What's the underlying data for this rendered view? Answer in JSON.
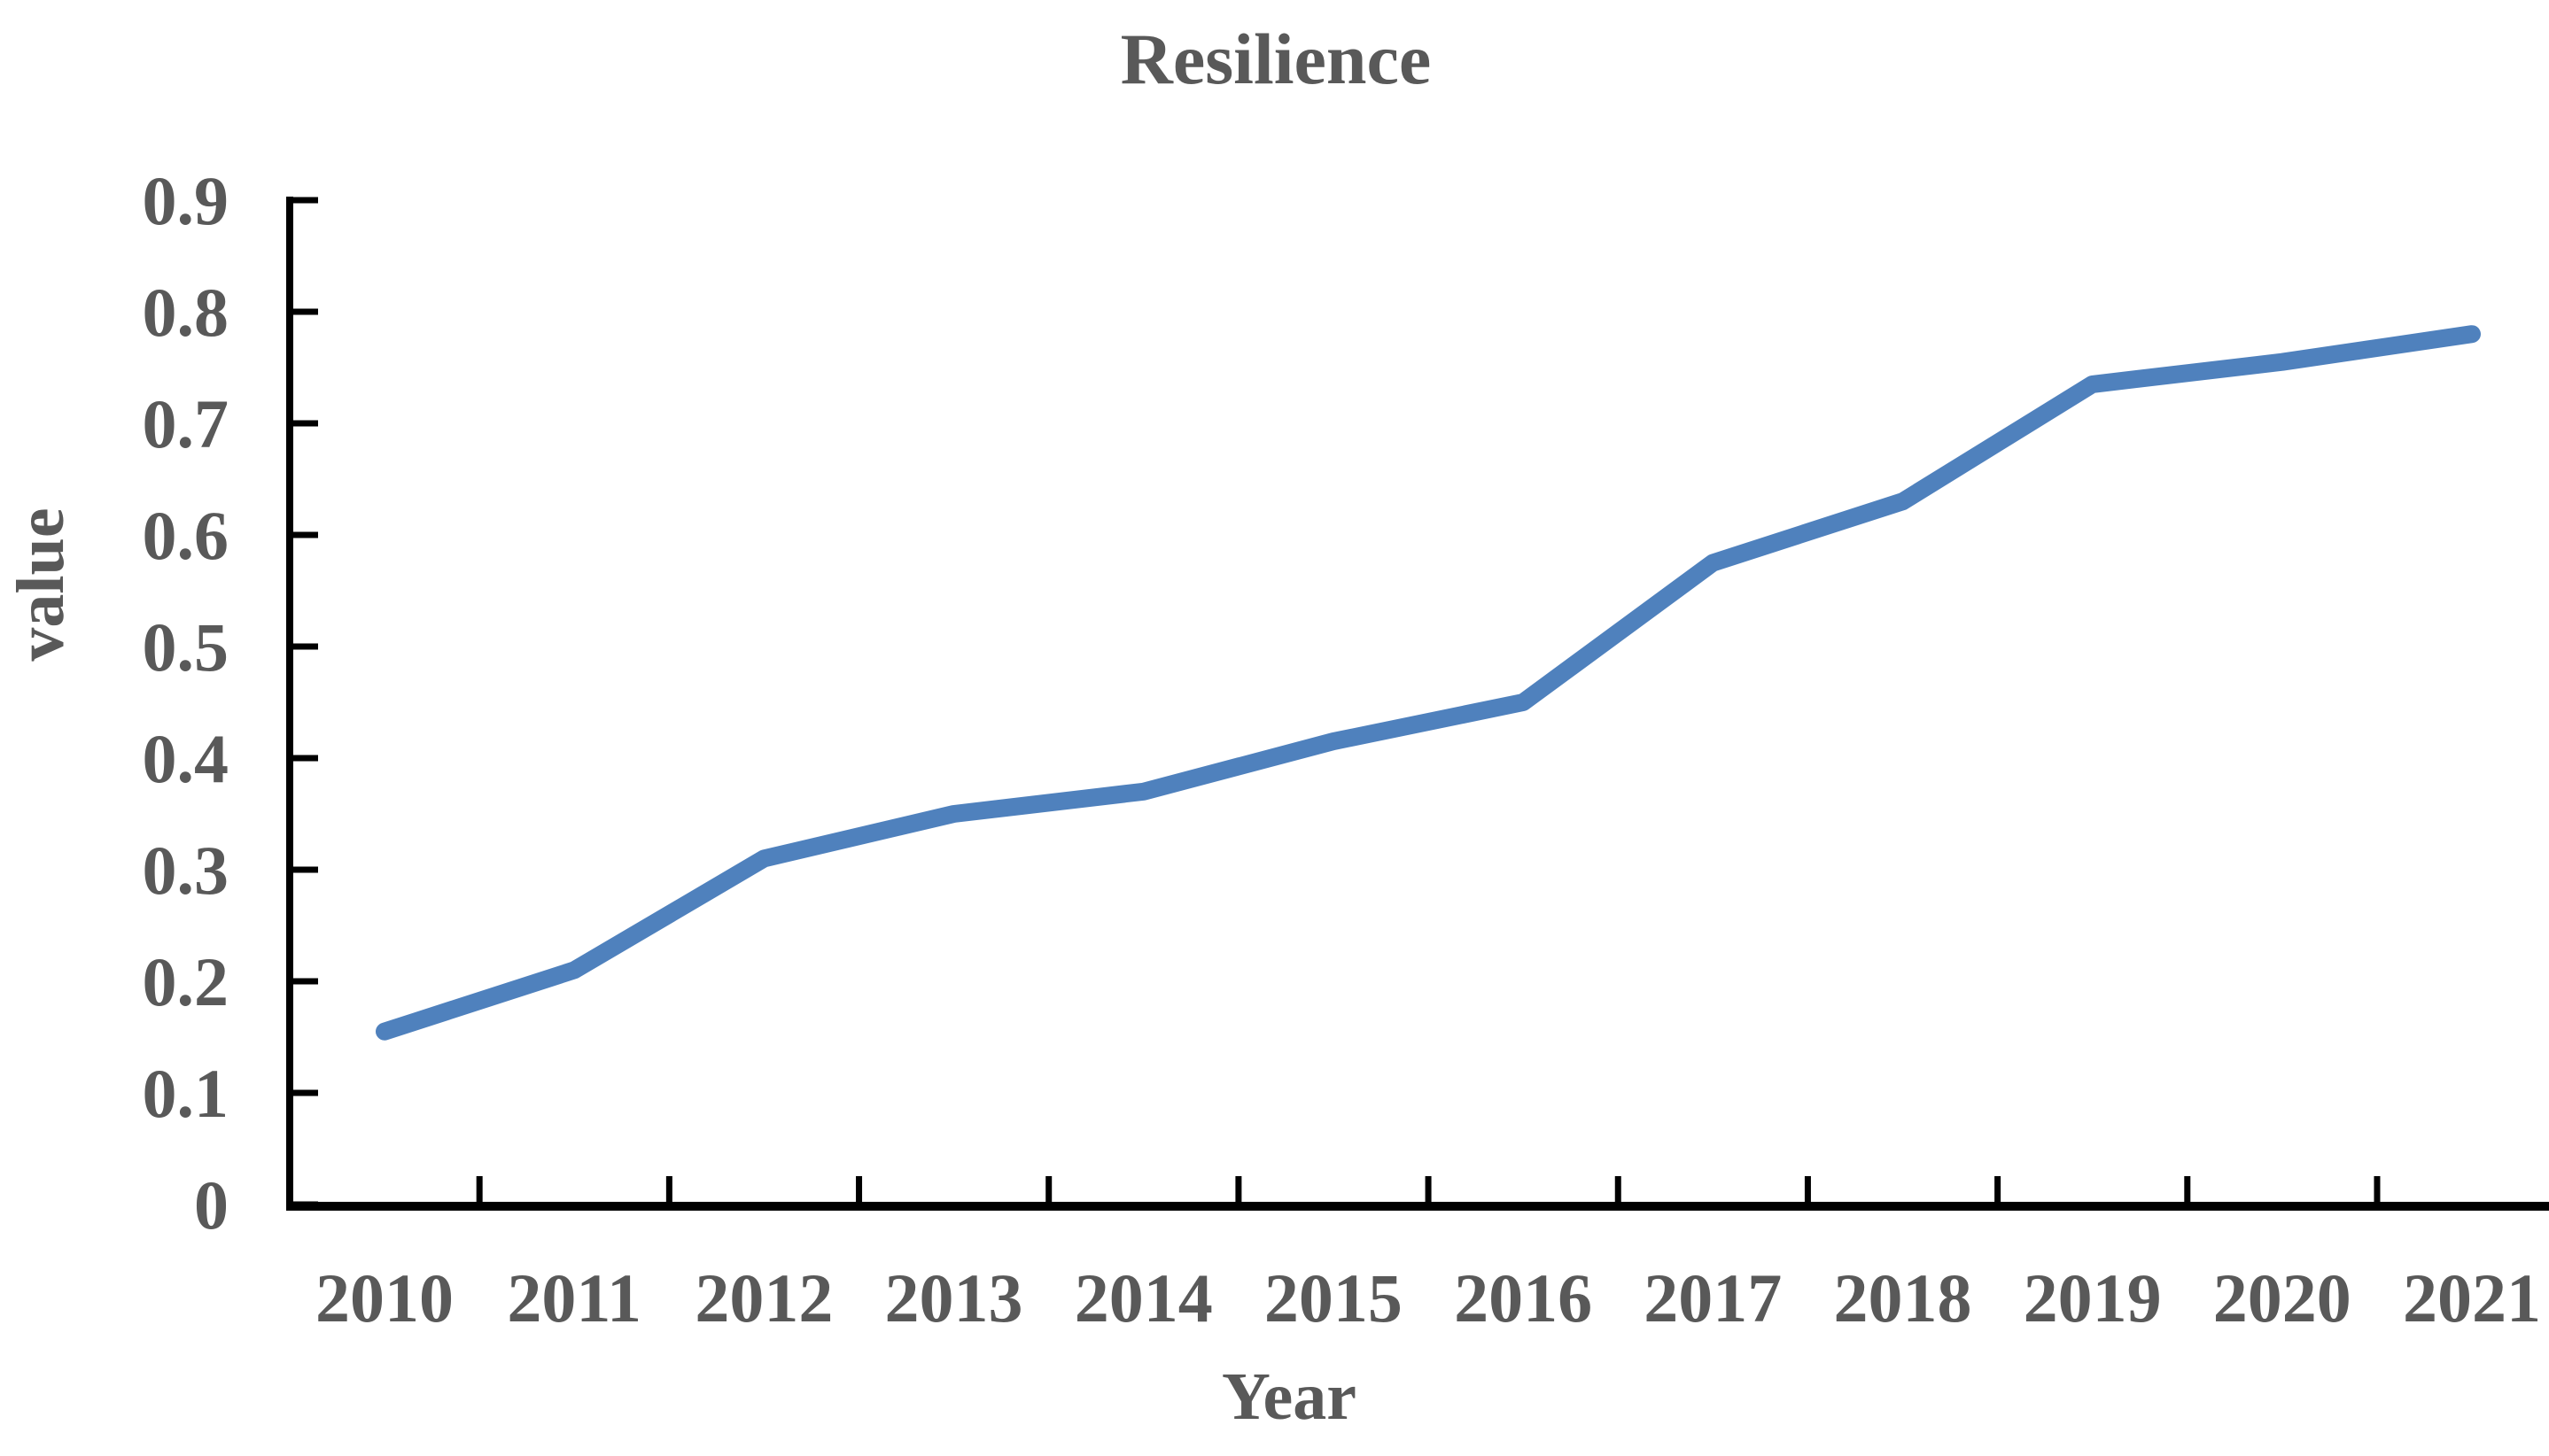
{
  "chart_data": {
    "type": "line",
    "title": "Resilience",
    "xlabel": "Year",
    "ylabel": "value",
    "categories": [
      "2010",
      "2011",
      "2012",
      "2013",
      "2014",
      "2015",
      "2016",
      "2017",
      "2018",
      "2019",
      "2020",
      "2021"
    ],
    "series": [
      {
        "name": "Resilience",
        "values": [
          0.155,
          0.21,
          0.31,
          0.35,
          0.37,
          0.415,
          0.45,
          0.575,
          0.63,
          0.735,
          0.755,
          0.78
        ]
      }
    ],
    "ylim": [
      0,
      0.9
    ],
    "ytick_step": 0.1,
    "y_tick_labels": [
      "0",
      "0.1",
      "0.2",
      "0.3",
      "0.4",
      "0.5",
      "0.6",
      "0.7",
      "0.8",
      "0.9"
    ],
    "grid": false,
    "legend_position": "none",
    "line_color": "#4f81bd",
    "text_color": "#595959",
    "axis_color": "#000000"
  }
}
